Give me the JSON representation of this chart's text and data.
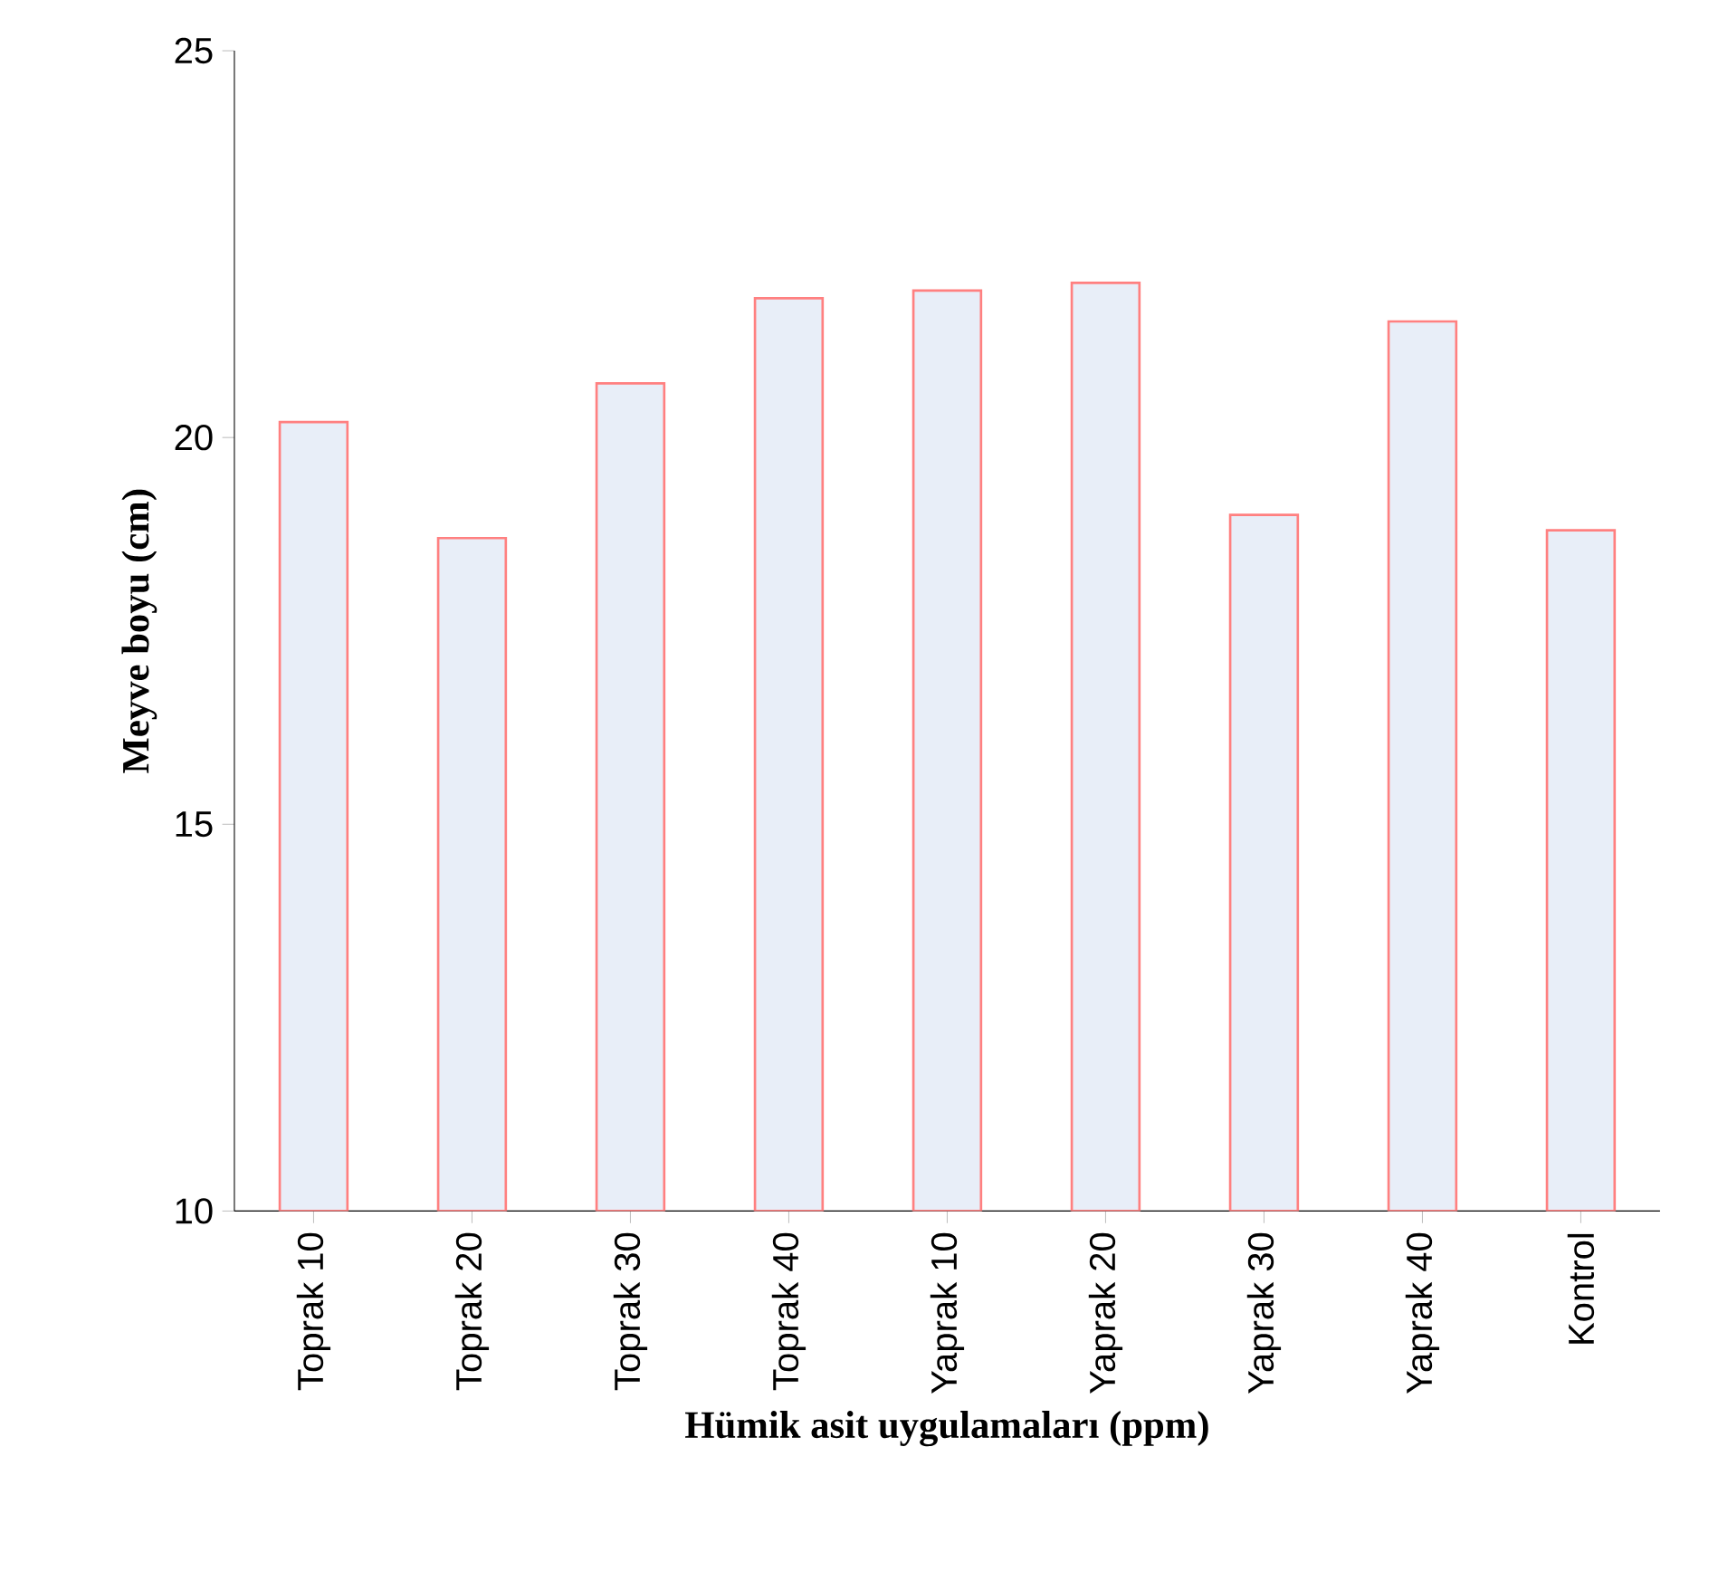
{
  "chart_data": {
    "type": "bar",
    "xlabel": "Hümik asit uygulamaları (ppm)",
    "ylabel": "Meyve boyu (cm)",
    "categories": [
      "Toprak 10",
      "Toprak 20",
      "Toprak 30",
      "Toprak 40",
      "Yaprak 10",
      "Yaprak 20",
      "Yaprak 30",
      "Yaprak 40",
      "Kontrol"
    ],
    "values": [
      20.2,
      18.7,
      20.7,
      21.8,
      21.9,
      22.0,
      19.0,
      21.5,
      18.8
    ],
    "color": "#e8eef8",
    "ylim": [
      10,
      25
    ],
    "yticks": [
      10,
      15,
      20,
      25
    ],
    "grid": false
  }
}
